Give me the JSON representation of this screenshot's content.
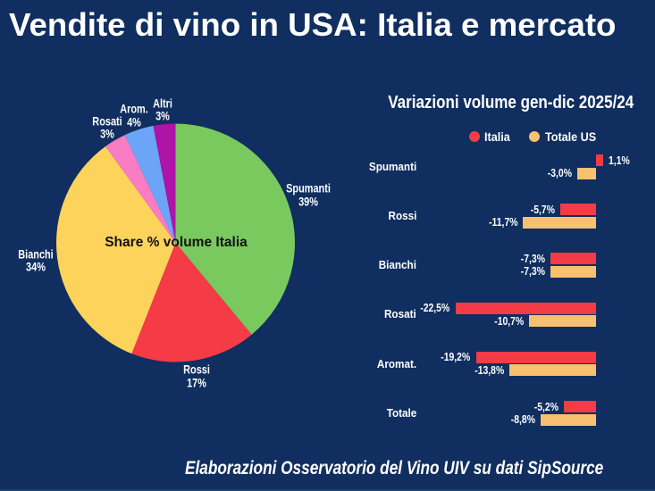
{
  "title": "Vendite di vino in USA: Italia e mercato",
  "caption": "Elaborazioni Osservatorio del Vino UIV su dati SipSource",
  "colors": {
    "background": "#102e5f",
    "text": "#ffffff",
    "pie_center_text": "#111111",
    "italia_red": "#f43b46",
    "totale_us_sand": "#f7c170"
  },
  "chart_data": [
    {
      "type": "pie",
      "title": "Share % volume Italia",
      "labels": [
        "Spumanti",
        "Rossi",
        "Bianchi",
        "Rosati",
        "Arom.",
        "Altri"
      ],
      "values": [
        39,
        17,
        34,
        3,
        4,
        3
      ],
      "display_values": [
        "39%",
        "17%",
        "34%",
        "3%",
        "4%",
        "3%"
      ],
      "colors": [
        "#7ac95e",
        "#f43b46",
        "#fdd35b",
        "#fa7cc4",
        "#6ca4f7",
        "#ae14a6"
      ],
      "start_angle_deg": 0,
      "direction": "clockwise"
    },
    {
      "type": "bar",
      "orientation": "horizontal",
      "title": "Variazioni volume gen-dic 2025/24",
      "legend_position": "top",
      "gridlines": false,
      "categories": [
        "Spumanti",
        "Rossi",
        "Bianchi",
        "Rosati",
        "Aromat.",
        "Totale"
      ],
      "series": [
        {
          "name": "Italia",
          "color": "#f43b46",
          "values": [
            1.1,
            -5.7,
            -7.3,
            -22.5,
            -19.2,
            -5.2
          ],
          "labels": [
            "1,1%",
            "-5,7%",
            "-7,3%",
            "-22,5%",
            "-19,2%",
            "-5,2%"
          ]
        },
        {
          "name": "Totale US",
          "color": "#f7c170",
          "values": [
            -3.0,
            -11.7,
            -7.3,
            -10.7,
            -13.8,
            -8.8
          ],
          "labels": [
            "-3,0%",
            "-11,7%",
            "-7,3%",
            "-10,7%",
            "-13,8%",
            "-8,8%"
          ]
        }
      ],
      "value_unit": "%"
    }
  ]
}
